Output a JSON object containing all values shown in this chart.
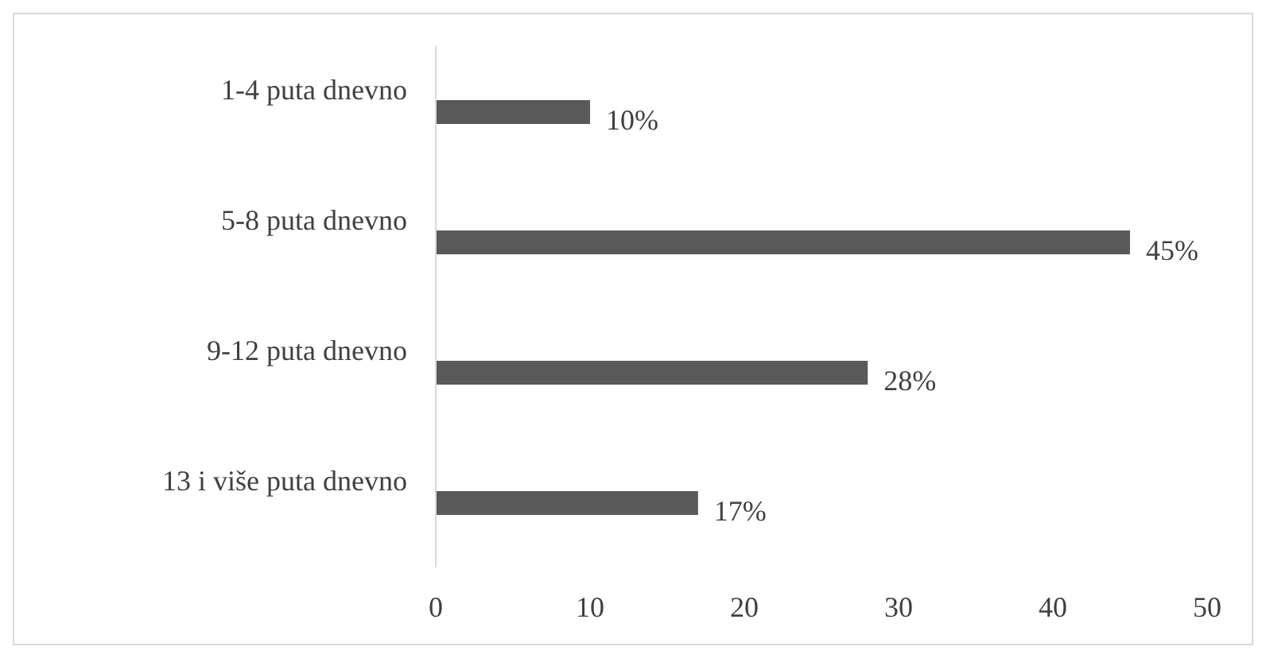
{
  "chart_data": {
    "type": "bar",
    "orientation": "horizontal",
    "categories": [
      "1-4 puta dnevno",
      "5-8 puta dnevno",
      "9-12 puta dnevno",
      "13 i više puta dnevno"
    ],
    "values": [
      10,
      45,
      28,
      17
    ],
    "value_labels": [
      "10%",
      "45%",
      "28%",
      "17%"
    ],
    "color": "#595959",
    "xlim": [
      0,
      50
    ],
    "xticks": [
      0,
      10,
      20,
      30,
      40,
      50
    ],
    "grid": false,
    "legend": false
  }
}
